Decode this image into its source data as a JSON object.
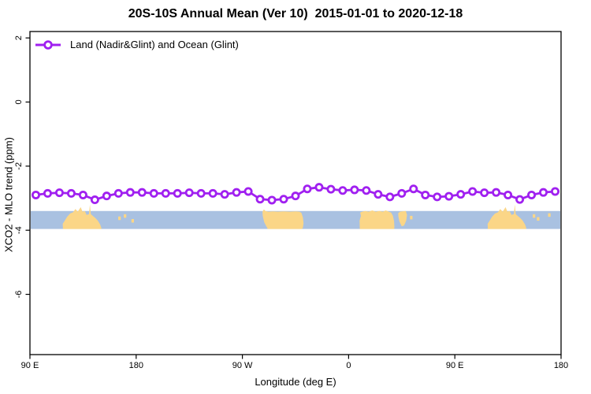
{
  "window": {
    "background": "#ffffff"
  },
  "header": {
    "title": "20S-10S Annual Mean (Ver 10)  2015-01-01 to 2020-12-18"
  },
  "legend": {
    "label": "Land (Nadir&Glint) and Ocean (Glint)",
    "marker": "open-circle-on-line"
  },
  "colors": {
    "series": "#A020F0",
    "ocean_band": "#A9C1E1",
    "land": "#FBD687",
    "axis": "#000000",
    "text": "#000000"
  },
  "chart_data": {
    "type": "line",
    "title": "20S-10S Annual Mean (Ver 10)  2015-01-01 to 2020-12-18",
    "xlabel": "Longitude (deg E)",
    "ylabel": "XCO2 - MLO trend (ppm)",
    "xlim": [
      90,
      540
    ],
    "ylim": [
      -7.88,
      2.2
    ],
    "grid": false,
    "legend_position": "top-left",
    "x_ticks": [
      {
        "deg": 90,
        "label": "90 E"
      },
      {
        "deg": 180,
        "label": "180"
      },
      {
        "deg": 270,
        "label": "90 W"
      },
      {
        "deg": 360,
        "label": "0"
      },
      {
        "deg": 450,
        "label": "90 E"
      },
      {
        "deg": 540,
        "label": "180"
      }
    ],
    "y_ticks": [
      {
        "v": 2,
        "label": "2"
      },
      {
        "v": 0,
        "label": "0"
      },
      {
        "v": -2,
        "label": "-2"
      },
      {
        "v": -4,
        "label": "-4"
      },
      {
        "v": -6,
        "label": "-6"
      }
    ],
    "series": [
      {
        "name": "Land (Nadir&Glint) and Ocean (Glint)",
        "color": "#A020F0",
        "marker": "open-circle",
        "x_deg": [
          95,
          105,
          115,
          125,
          135,
          145,
          155,
          165,
          175,
          185,
          195,
          205,
          215,
          225,
          235,
          245,
          255,
          265,
          275,
          285,
          295,
          305,
          315,
          325,
          335,
          345,
          355,
          365,
          375,
          385,
          395,
          405,
          415,
          425,
          435,
          445,
          455,
          465,
          475,
          485,
          495,
          505,
          515,
          525,
          535
        ],
        "values": [
          -2.9,
          -2.85,
          -2.83,
          -2.85,
          -2.9,
          -3.05,
          -2.93,
          -2.85,
          -2.82,
          -2.82,
          -2.85,
          -2.85,
          -2.85,
          -2.83,
          -2.85,
          -2.85,
          -2.88,
          -2.82,
          -2.79,
          -3.03,
          -3.06,
          -3.03,
          -2.93,
          -2.71,
          -2.66,
          -2.72,
          -2.76,
          -2.74,
          -2.76,
          -2.88,
          -2.96,
          -2.85,
          -2.71,
          -2.9,
          -2.96,
          -2.94,
          -2.88,
          -2.79,
          -2.83,
          -2.82,
          -2.9,
          -3.04,
          -2.9,
          -2.82,
          -2.79
        ]
      }
    ],
    "map_strip": {
      "description": "20S-10S latitude band map: ocean band with land silhouettes",
      "v_top": -3.4,
      "v_bottom": -3.96,
      "ocean_color": "#A9C1E1",
      "land_color": "#FBD687",
      "land_polygons": [
        {
          "name": "australia-west-copy",
          "points": [
            [
              118,
              -3.96
            ],
            [
              117.8,
              -3.8
            ],
            [
              119.5,
              -3.7
            ],
            [
              121.5,
              -3.58
            ],
            [
              124,
              -3.48
            ],
            [
              126.5,
              -3.44
            ],
            [
              128.5,
              -3.34
            ],
            [
              130.5,
              -3.42
            ],
            [
              133,
              -3.28
            ],
            [
              134.5,
              -3.42
            ],
            [
              136.5,
              -3.4
            ],
            [
              138,
              -3.52
            ],
            [
              140,
              -3.5
            ],
            [
              140.8,
              -3.2
            ],
            [
              141.6,
              -3.5
            ],
            [
              143.5,
              -3.56
            ],
            [
              145.5,
              -3.62
            ],
            [
              147.5,
              -3.7
            ],
            [
              149.5,
              -3.82
            ],
            [
              150.5,
              -3.93
            ],
            [
              150.5,
              -3.96
            ]
          ]
        },
        {
          "name": "south-america",
          "points": [
            [
              291.5,
              -3.96
            ],
            [
              288.5,
              -3.75
            ],
            [
              287.2,
              -3.55
            ],
            [
              287.0,
              -3.42
            ],
            [
              288.2,
              -3.35
            ],
            [
              289.5,
              -3.4
            ],
            [
              292,
              -3.42
            ],
            [
              296,
              -3.41
            ],
            [
              300,
              -3.42
            ],
            [
              305,
              -3.41
            ],
            [
              310,
              -3.42
            ],
            [
              315,
              -3.41
            ],
            [
              318.5,
              -3.42
            ],
            [
              320.0,
              -3.46
            ],
            [
              321.3,
              -3.6
            ],
            [
              321.8,
              -3.78
            ],
            [
              321.3,
              -3.92
            ],
            [
              320.5,
              -3.96
            ]
          ]
        },
        {
          "name": "africa",
          "points": [
            [
              369.5,
              -3.96
            ],
            [
              369.3,
              -3.7
            ],
            [
              370.5,
              -3.55
            ],
            [
              369.8,
              -3.45
            ],
            [
              371.5,
              -3.42
            ],
            [
              374,
              -3.4
            ],
            [
              377,
              -3.42
            ],
            [
              380,
              -3.38
            ],
            [
              383,
              -3.42
            ],
            [
              386,
              -3.4
            ],
            [
              389,
              -3.42
            ],
            [
              391.5,
              -3.38
            ],
            [
              394,
              -3.42
            ],
            [
              396,
              -3.45
            ],
            [
              397.5,
              -3.55
            ],
            [
              398.5,
              -3.72
            ],
            [
              398.8,
              -3.9
            ],
            [
              398.5,
              -3.96
            ]
          ]
        },
        {
          "name": "madagascar",
          "points": [
            [
              402.0,
              -3.47
            ],
            [
              403.5,
              -3.42
            ],
            [
              408.5,
              -3.4
            ],
            [
              409.5,
              -3.52
            ],
            [
              408.8,
              -3.7
            ],
            [
              407.0,
              -3.85
            ],
            [
              405.0,
              -3.88
            ],
            [
              403.0,
              -3.72
            ],
            [
              402.2,
              -3.58
            ]
          ]
        },
        {
          "name": "australia-east-copy",
          "points": [
            [
              478,
              -3.96
            ],
            [
              477.8,
              -3.8
            ],
            [
              479.5,
              -3.7
            ],
            [
              481.5,
              -3.58
            ],
            [
              484,
              -3.48
            ],
            [
              486.5,
              -3.44
            ],
            [
              488.5,
              -3.34
            ],
            [
              490.5,
              -3.42
            ],
            [
              493,
              -3.28
            ],
            [
              494.5,
              -3.42
            ],
            [
              496.5,
              -3.4
            ],
            [
              498,
              -3.52
            ],
            [
              500,
              -3.5
            ],
            [
              500.8,
              -3.2
            ],
            [
              501.6,
              -3.5
            ],
            [
              503.5,
              -3.56
            ],
            [
              505.5,
              -3.62
            ],
            [
              507.5,
              -3.7
            ],
            [
              509.5,
              -3.82
            ],
            [
              510.5,
              -3.93
            ],
            [
              510.5,
              -3.96
            ]
          ]
        }
      ],
      "island_dots": [
        {
          "deg": 165.8,
          "v": -3.62
        },
        {
          "deg": 170.5,
          "v": -3.55
        },
        {
          "deg": 177.0,
          "v": -3.7
        },
        {
          "deg": 413.0,
          "v": -3.6
        },
        {
          "deg": 517.0,
          "v": -3.55
        },
        {
          "deg": 520.5,
          "v": -3.64
        },
        {
          "deg": 530.0,
          "v": -3.52
        }
      ]
    }
  }
}
